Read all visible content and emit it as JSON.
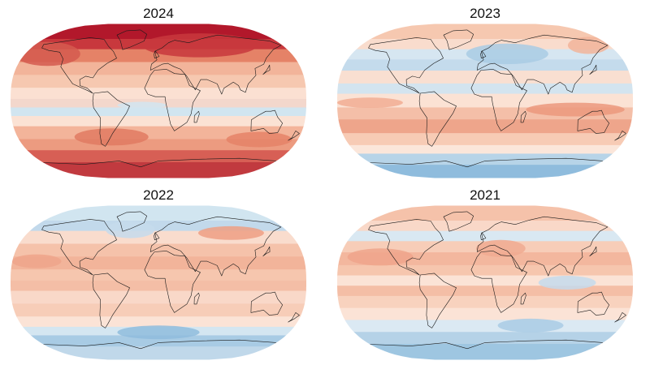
{
  "panels": [
    {
      "id": "p2024",
      "year": "2024",
      "bands": [
        {
          "lat": 90,
          "c": "#b2182b"
        },
        {
          "lat": 72,
          "c": "#c8383d"
        },
        {
          "lat": 60,
          "c": "#e58267"
        },
        {
          "lat": 45,
          "c": "#f2b49a"
        },
        {
          "lat": 30,
          "c": "#f6c8b0"
        },
        {
          "lat": 15,
          "c": "#fbe0d2"
        },
        {
          "lat": 2,
          "c": "#f3d7cc"
        },
        {
          "lat": -8,
          "c": "#d1e5f0"
        },
        {
          "lat": -18,
          "c": "#fbe2d4"
        },
        {
          "lat": -30,
          "c": "#f3b49a"
        },
        {
          "lat": -45,
          "c": "#ec9b80"
        },
        {
          "lat": -58,
          "c": "#d75f55"
        },
        {
          "lat": -72,
          "c": "#c13a3f"
        },
        {
          "lat": -90,
          "c": "#b2182b"
        }
      ],
      "blobs": [
        {
          "lon": -150,
          "lat": 55,
          "rx": 40,
          "ry": 14,
          "c": "#d55a4f"
        },
        {
          "lon": 60,
          "lat": 65,
          "rx": 70,
          "ry": 14,
          "c": "#c8383d"
        },
        {
          "lon": -60,
          "lat": -42,
          "rx": 45,
          "ry": 10,
          "c": "#e07a62"
        },
        {
          "lon": 130,
          "lat": -45,
          "rx": 40,
          "ry": 9,
          "c": "#e58267"
        },
        {
          "lon": -20,
          "lat": -5,
          "rx": 30,
          "ry": 4,
          "c": "#d1e5f0"
        }
      ]
    },
    {
      "id": "p2023",
      "year": "2023",
      "bands": [
        {
          "lat": 90,
          "c": "#f6c8b0"
        },
        {
          "lat": 72,
          "c": "#f9dccd"
        },
        {
          "lat": 60,
          "c": "#d6e6f1"
        },
        {
          "lat": 48,
          "c": "#c4dbec"
        },
        {
          "lat": 35,
          "c": "#f9dfd1"
        },
        {
          "lat": 20,
          "c": "#d3e4ef"
        },
        {
          "lat": 8,
          "c": "#fbe2d4"
        },
        {
          "lat": -8,
          "c": "#f4bfa8"
        },
        {
          "lat": -22,
          "c": "#eea58b"
        },
        {
          "lat": -38,
          "c": "#f7cbb5"
        },
        {
          "lat": -52,
          "c": "#fbe6da"
        },
        {
          "lat": -62,
          "c": "#b7d4e8"
        },
        {
          "lat": -75,
          "c": "#8fbcdd"
        },
        {
          "lat": -90,
          "c": "#cfe2ef"
        }
      ],
      "blobs": [
        {
          "lon": 30,
          "lat": 55,
          "rx": 50,
          "ry": 12,
          "c": "#a9cbe4"
        },
        {
          "lon": 150,
          "lat": 65,
          "rx": 25,
          "ry": 10,
          "c": "#f2b49a"
        },
        {
          "lon": 110,
          "lat": -10,
          "rx": 60,
          "ry": 8,
          "c": "#eb987d"
        },
        {
          "lon": -140,
          "lat": -2,
          "rx": 40,
          "ry": 6,
          "c": "#f1ad93"
        }
      ]
    },
    {
      "id": "p2022",
      "year": "2022",
      "bands": [
        {
          "lat": 90,
          "c": "#d1e5f0"
        },
        {
          "lat": 72,
          "c": "#c2d9eb"
        },
        {
          "lat": 60,
          "c": "#f9dccd"
        },
        {
          "lat": 45,
          "c": "#f5c2aa"
        },
        {
          "lat": 30,
          "c": "#f2b49a"
        },
        {
          "lat": 15,
          "c": "#f6c6ae"
        },
        {
          "lat": 2,
          "c": "#f4bea6"
        },
        {
          "lat": -10,
          "c": "#f9d8c8"
        },
        {
          "lat": -25,
          "c": "#f7cdb8"
        },
        {
          "lat": -40,
          "c": "#fbe3d6"
        },
        {
          "lat": -52,
          "c": "#d4e6f1"
        },
        {
          "lat": -62,
          "c": "#a8cbe4"
        },
        {
          "lat": -75,
          "c": "#c0d8ea"
        },
        {
          "lat": -90,
          "c": "#dbe9f3"
        }
      ],
      "blobs": [
        {
          "lon": -40,
          "lat": 62,
          "rx": 30,
          "ry": 10,
          "c": "#c5dbec"
        },
        {
          "lon": 100,
          "lat": 58,
          "rx": 40,
          "ry": 8,
          "c": "#ee9f84"
        },
        {
          "lon": 0,
          "lat": -58,
          "rx": 50,
          "ry": 8,
          "c": "#8fbcdd"
        },
        {
          "lon": -150,
          "lat": 25,
          "rx": 30,
          "ry": 8,
          "c": "#eea58b"
        }
      ]
    },
    {
      "id": "p2021",
      "year": "2021",
      "bands": [
        {
          "lat": 90,
          "c": "#f5c2aa"
        },
        {
          "lat": 72,
          "c": "#f9d8c8"
        },
        {
          "lat": 60,
          "c": "#d9e8f2"
        },
        {
          "lat": 48,
          "c": "#f7cdb8"
        },
        {
          "lat": 35,
          "c": "#f3b79e"
        },
        {
          "lat": 20,
          "c": "#f6c6ae"
        },
        {
          "lat": 8,
          "c": "#fbe3d6"
        },
        {
          "lat": -4,
          "c": "#f4bea6"
        },
        {
          "lat": -16,
          "c": "#f8d2be"
        },
        {
          "lat": -30,
          "c": "#fbe3d6"
        },
        {
          "lat": -44,
          "c": "#dbe9f3"
        },
        {
          "lat": -58,
          "c": "#b5d2e7"
        },
        {
          "lat": -72,
          "c": "#9ec6e1"
        },
        {
          "lat": -90,
          "c": "#c9dded"
        }
      ],
      "blobs": [
        {
          "lon": -130,
          "lat": 30,
          "rx": 40,
          "ry": 10,
          "c": "#eea58b"
        },
        {
          "lon": 20,
          "lat": 40,
          "rx": 30,
          "ry": 10,
          "c": "#f0aa90"
        },
        {
          "lon": 100,
          "lat": 0,
          "rx": 35,
          "ry": 8,
          "c": "#c4dbec"
        },
        {
          "lon": 60,
          "lat": -50,
          "rx": 40,
          "ry": 8,
          "c": "#a9cbe4"
        }
      ]
    }
  ],
  "coastline_color": "#1a1a1a"
}
